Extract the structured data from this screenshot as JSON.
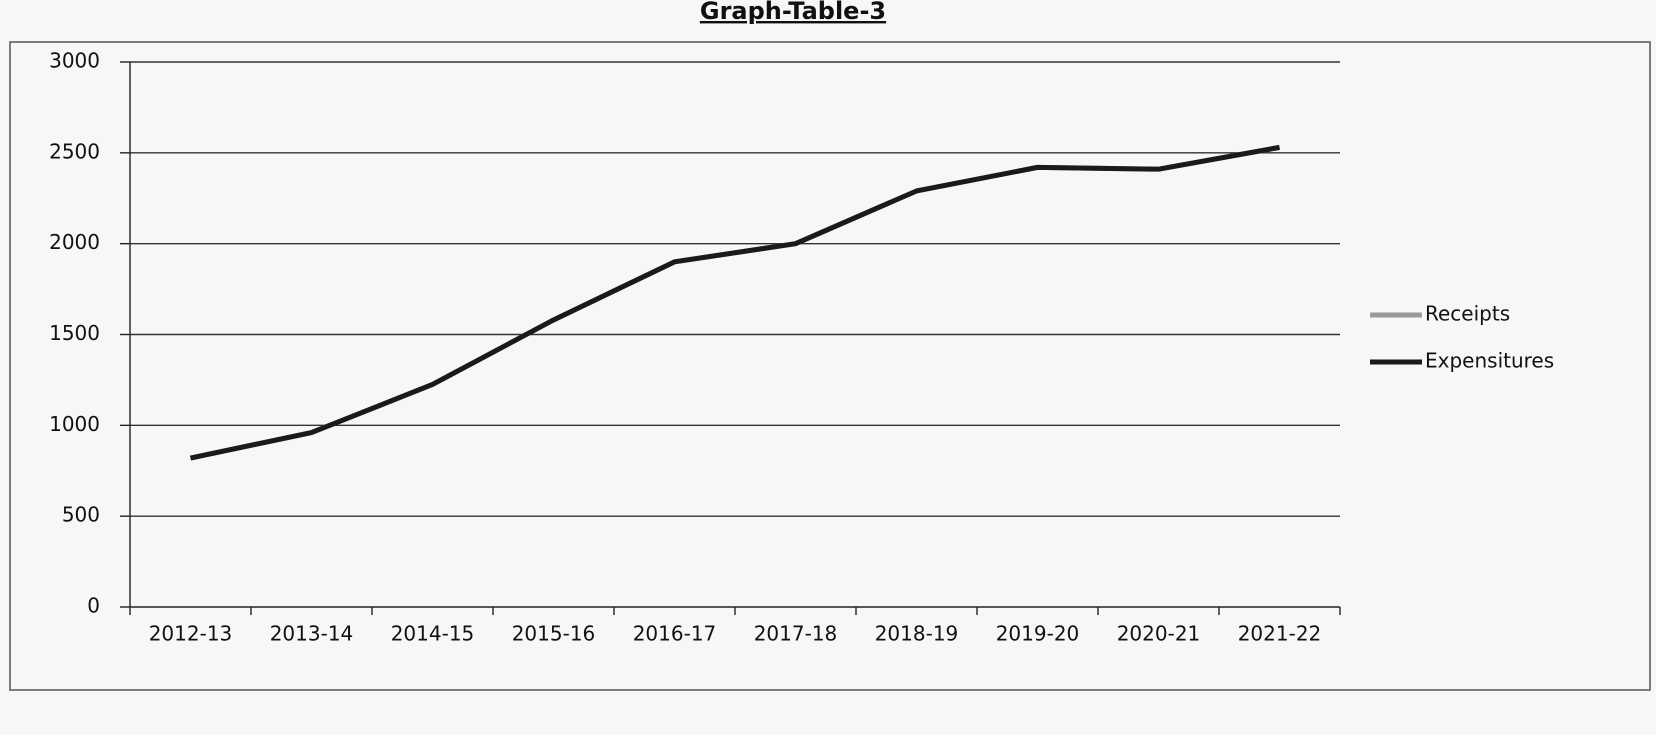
{
  "chart_data": {
    "type": "line",
    "title": "Graph-Table-3",
    "categories": [
      "2012-13",
      "2013-14",
      "2014-15",
      "2015-16",
      "2016-17",
      "2017-18",
      "2018-19",
      "2019-20",
      "2020-21",
      "2021-22"
    ],
    "series": [
      {
        "name": "Receipts",
        "color": "#9a9a9a",
        "values": [
          820,
          960,
          1225,
          1580,
          1900,
          2000,
          2290,
          2420,
          2410,
          2530
        ]
      },
      {
        "name": "Expensitures",
        "color": "#1a1a1a",
        "values": [
          820,
          960,
          1225,
          1580,
          1900,
          2000,
          2290,
          2420,
          2410,
          2530
        ]
      }
    ],
    "ylim": [
      0,
      3000
    ],
    "yticks": [
      0,
      500,
      1000,
      1500,
      2000,
      2500,
      3000
    ],
    "grid": true,
    "legend": "right"
  }
}
